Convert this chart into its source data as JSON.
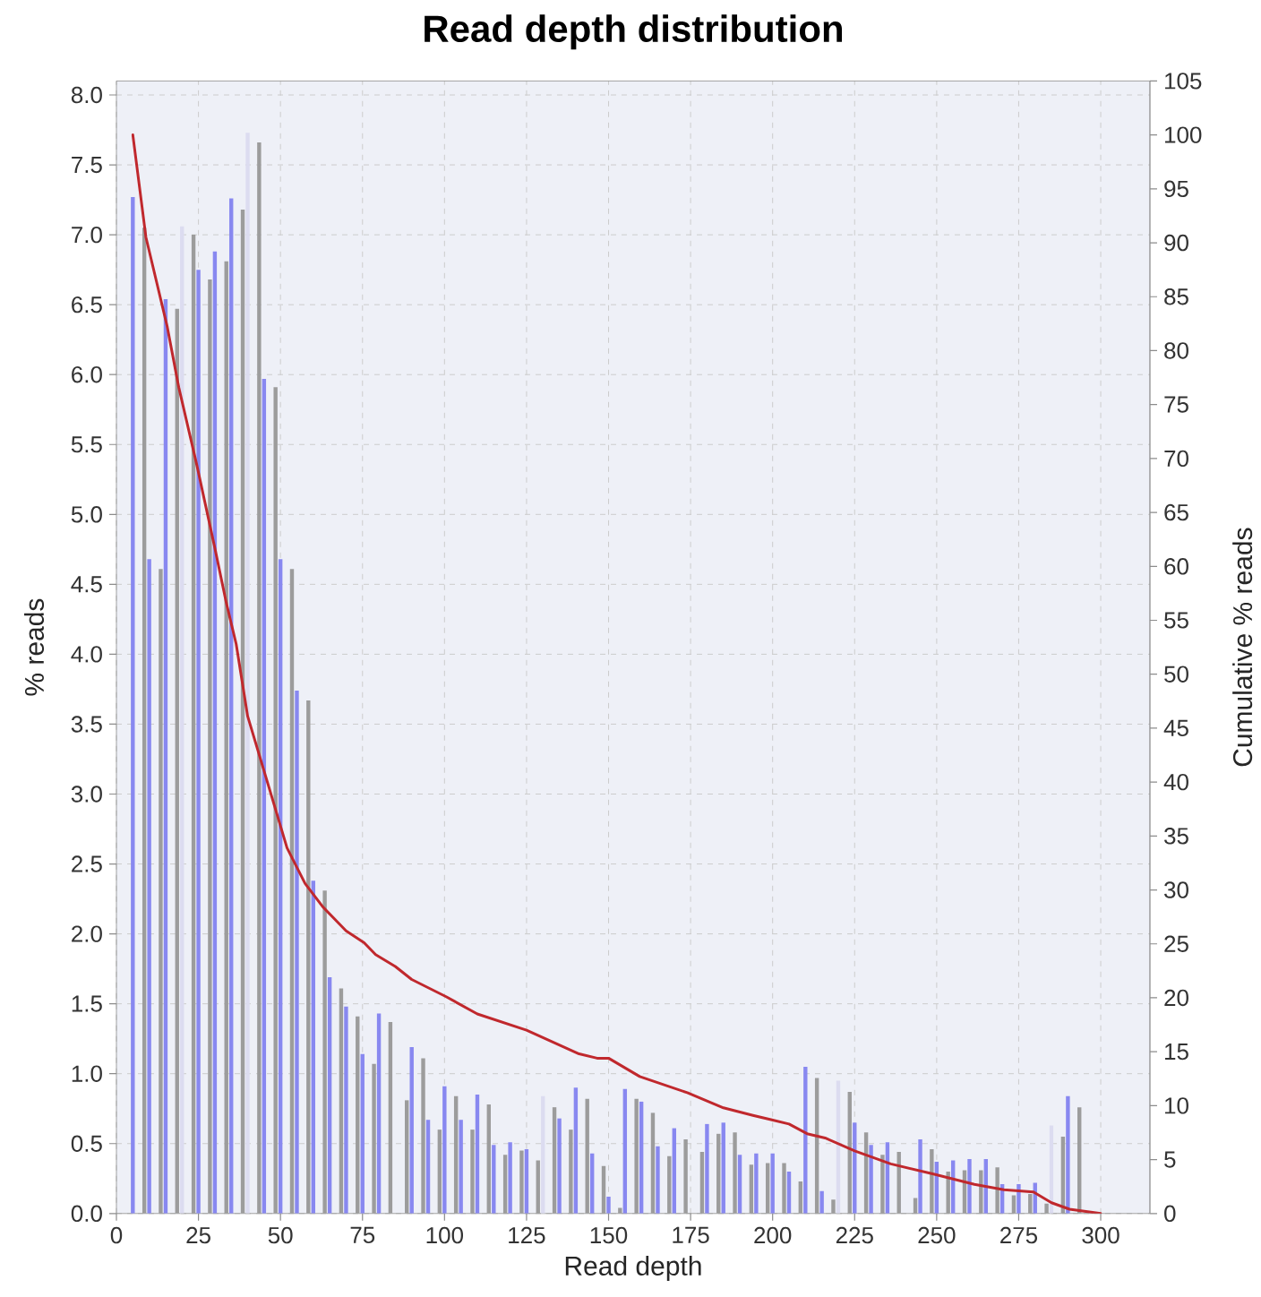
{
  "chart_data": {
    "type": "bar",
    "title": "Read depth distribution",
    "xlabel": "Read depth",
    "ylabel": "% reads",
    "y2label": "Cumulative % reads",
    "xlim": [
      0,
      315
    ],
    "xticks": [
      0,
      25,
      50,
      75,
      100,
      125,
      150,
      175,
      200,
      225,
      250,
      275,
      300
    ],
    "ylim": [
      0,
      8.1
    ],
    "yticks": [
      {
        "value": 0,
        "label": "0.0"
      },
      {
        "value": 0.5,
        "label": "0.5"
      },
      {
        "value": 1,
        "label": "1.0"
      },
      {
        "value": 1.5,
        "label": "1.5"
      },
      {
        "value": 2,
        "label": "2.0"
      },
      {
        "value": 2.5,
        "label": "2.5"
      },
      {
        "value": 3,
        "label": "3.0"
      },
      {
        "value": 3.5,
        "label": "3.5"
      },
      {
        "value": 4,
        "label": "4.0"
      },
      {
        "value": 4.5,
        "label": "4.5"
      },
      {
        "value": 5,
        "label": "5.0"
      },
      {
        "value": 5.5,
        "label": "5.5"
      },
      {
        "value": 6,
        "label": "6.0"
      },
      {
        "value": 6.5,
        "label": "6.5"
      },
      {
        "value": 7,
        "label": "7.0"
      },
      {
        "value": 7.5,
        "label": "7.5"
      },
      {
        "value": 8,
        "label": "8.0"
      }
    ],
    "y2lim": [
      0,
      105
    ],
    "y2ticks": [
      0,
      5,
      10,
      15,
      20,
      25,
      30,
      35,
      40,
      45,
      50,
      55,
      60,
      65,
      70,
      75,
      80,
      85,
      90,
      95,
      100,
      105
    ],
    "grid": true,
    "series": [
      {
        "color": "#8888f0",
        "x": [
          5,
          10,
          15,
          25,
          30,
          35,
          45,
          50,
          55,
          60,
          65,
          70,
          75,
          80,
          90,
          95,
          100,
          105,
          110,
          115,
          120,
          125,
          135,
          140,
          145,
          150,
          155,
          160,
          165,
          170,
          180,
          185,
          190,
          195,
          200,
          205,
          210,
          215,
          225,
          230,
          235,
          245,
          250,
          255,
          260,
          265,
          270,
          275,
          280,
          290
        ],
        "values": [
          7.27,
          4.68,
          6.54,
          6.75,
          6.88,
          7.26,
          5.97,
          4.68,
          3.74,
          2.38,
          1.69,
          1.48,
          1.14,
          1.43,
          1.19,
          0.67,
          0.91,
          0.67,
          0.85,
          0.49,
          0.51,
          0.46,
          0.68,
          0.9,
          0.43,
          0.12,
          0.89,
          0.8,
          0.48,
          0.61,
          0.64,
          0.65,
          0.42,
          0.43,
          0.43,
          0.3,
          1.05,
          0.16,
          0.65,
          0.49,
          0.51,
          0.53,
          0.37,
          0.38,
          0.39,
          0.39,
          0.21,
          0.21,
          0.22,
          0.84
        ]
      },
      {
        "color": "#9c9c9c",
        "x": [
          8.5,
          13.5,
          18.5,
          23.5,
          28.5,
          33.5,
          38.5,
          43.5,
          48.5,
          53.5,
          58.5,
          63.5,
          68.5,
          73.5,
          78.5,
          83.5,
          88.5,
          93.5,
          98.5,
          103.5,
          108.5,
          113.5,
          118.5,
          123.5,
          128.5,
          133.5,
          138.5,
          143.5,
          148.5,
          153.5,
          158.5,
          163.5,
          168.5,
          173.5,
          178.5,
          183.5,
          188.5,
          193.5,
          198.5,
          203.5,
          208.5,
          213.5,
          218.5,
          223.5,
          228.5,
          233.5,
          238.5,
          243.5,
          248.5,
          253.5,
          258.5,
          263.5,
          268.5,
          273.5,
          278.5,
          283.5,
          288.5,
          293.5
        ],
        "values": [
          7.05,
          4.61,
          6.47,
          7.0,
          6.68,
          6.81,
          7.18,
          7.66,
          5.91,
          4.61,
          3.67,
          2.31,
          1.61,
          1.41,
          1.07,
          1.37,
          0.81,
          1.11,
          0.6,
          0.84,
          0.6,
          0.78,
          0.42,
          0.45,
          0.38,
          0.76,
          0.6,
          0.82,
          0.34,
          0.04,
          0.82,
          0.72,
          0.41,
          0.53,
          0.44,
          0.57,
          0.58,
          0.35,
          0.36,
          0.36,
          0.23,
          0.97,
          0.1,
          0.87,
          0.58,
          0.42,
          0.44,
          0.11,
          0.46,
          0.3,
          0.31,
          0.31,
          0.33,
          0.13,
          0.14,
          0.07,
          0.55,
          0.76
        ]
      },
      {
        "color": "#dcdcf0",
        "x": [
          20,
          40,
          130,
          220,
          285
        ],
        "values": [
          7.06,
          7.73,
          0.84,
          0.95,
          0.63
        ]
      },
      {
        "type": "line",
        "axis": "y2",
        "color": "#c0282d",
        "x": [
          5,
          9,
          15.5,
          19,
          24.5,
          30,
          33.5,
          36.5,
          40,
          46.5,
          52,
          57.5,
          63,
          70,
          75.5,
          79,
          85,
          90,
          100.5,
          110,
          125,
          141,
          146.5,
          150,
          159.5,
          174,
          185,
          194,
          199.5,
          205,
          210.5,
          216,
          225,
          236,
          248.5,
          261.5,
          270.5,
          279.5,
          285,
          290.5,
          300
        ],
        "values": [
          100,
          90.5,
          82.2,
          76.6,
          69.4,
          61.7,
          56.6,
          52.8,
          46.1,
          39.5,
          33.9,
          30.6,
          28.4,
          26.2,
          25.1,
          24,
          22.9,
          21.7,
          20.1,
          18.5,
          17,
          14.8,
          14.4,
          14.4,
          12.7,
          11.2,
          9.8,
          9.1,
          8.7,
          8.3,
          7.4,
          7.0,
          5.8,
          4.6,
          3.7,
          2.7,
          2.2,
          2,
          1,
          0.4,
          0
        ]
      }
    ]
  }
}
